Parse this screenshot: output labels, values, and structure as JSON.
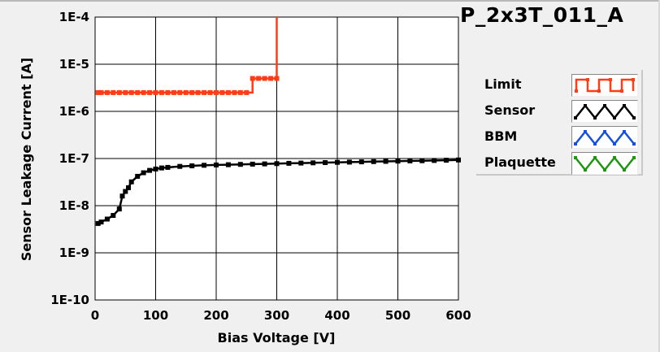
{
  "chart_data": {
    "type": "line",
    "title": "P_2x3T_011_A",
    "xlabel": "Bias Voltage [V]",
    "ylabel": "Sensor Leakage Current [A]",
    "xlim": [
      0,
      600
    ],
    "ylim": [
      1e-10,
      0.0001
    ],
    "yscale": "log",
    "grid": true,
    "legend_position": "right",
    "x_ticks": [
      "0",
      "100",
      "200",
      "300",
      "400",
      "500",
      "600"
    ],
    "y_ticks": [
      "1E-10",
      "1E-9",
      "1E-8",
      "1E-7",
      "1E-6",
      "1E-5",
      "1E-4"
    ],
    "series": [
      {
        "name": "Limit",
        "color": "#ff3c14",
        "x": [
          5,
          10,
          20,
          30,
          40,
          50,
          60,
          70,
          80,
          90,
          100,
          110,
          120,
          130,
          140,
          150,
          160,
          170,
          180,
          190,
          200,
          210,
          220,
          230,
          240,
          250,
          260,
          270,
          280,
          290,
          300,
          300
        ],
        "y": [
          2.5e-06,
          2.5e-06,
          2.5e-06,
          2.5e-06,
          2.5e-06,
          2.5e-06,
          2.5e-06,
          2.5e-06,
          2.5e-06,
          2.5e-06,
          2.5e-06,
          2.5e-06,
          2.5e-06,
          2.5e-06,
          2.5e-06,
          2.5e-06,
          2.5e-06,
          2.5e-06,
          2.5e-06,
          2.5e-06,
          2.5e-06,
          2.5e-06,
          2.5e-06,
          2.5e-06,
          2.5e-06,
          2.5e-06,
          5e-06,
          5e-06,
          5e-06,
          5e-06,
          5e-06,
          0.0001
        ]
      },
      {
        "name": "Sensor",
        "color": "#000000",
        "x": [
          5,
          10,
          20,
          30,
          40,
          45,
          50,
          55,
          60,
          70,
          80,
          90,
          100,
          110,
          120,
          140,
          160,
          180,
          200,
          220,
          240,
          260,
          280,
          300,
          320,
          340,
          360,
          380,
          400,
          420,
          440,
          460,
          480,
          500,
          520,
          540,
          560,
          580,
          600
        ],
        "y": [
          4.2e-09,
          4.5e-09,
          5.2e-09,
          6.2e-09,
          8.5e-09,
          1.6e-08,
          2e-08,
          2.4e-08,
          3.2e-08,
          4.2e-08,
          5e-08,
          5.6e-08,
          6e-08,
          6.3e-08,
          6.5e-08,
          6.8e-08,
          7e-08,
          7.2e-08,
          7.3e-08,
          7.4e-08,
          7.5e-08,
          7.6e-08,
          7.7e-08,
          7.8e-08,
          7.9e-08,
          8e-08,
          8.1e-08,
          8.2e-08,
          8.3e-08,
          8.4e-08,
          8.5e-08,
          8.6e-08,
          8.7e-08,
          8.8e-08,
          8.9e-08,
          9e-08,
          9.1e-08,
          9.2e-08,
          9.3e-08
        ]
      },
      {
        "name": "BBM",
        "color": "#1450dc",
        "x": [],
        "y": []
      },
      {
        "name": "Plaquette",
        "color": "#1e9614",
        "x": [],
        "y": []
      }
    ]
  }
}
